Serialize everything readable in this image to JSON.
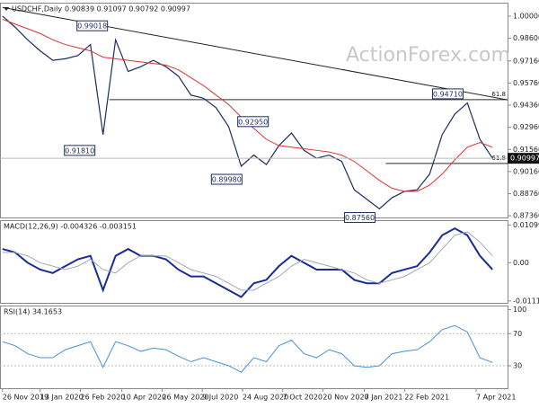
{
  "chart_data": {
    "type": "line",
    "title": "USDCHF,Daily",
    "ohlc_text": "0.90839 0.91097 0.90792 0.90997",
    "watermark": "ActionForex.com",
    "xlim": [
      -0.2,
      40.2
    ],
    "xticks": [
      {
        "value": 0.0,
        "label": "26 Nov 2019"
      },
      {
        "value": 3.0,
        "label": "13 Jan 2020"
      },
      {
        "value": 6.2,
        "label": "26 Feb 2020"
      },
      {
        "value": 9.5,
        "label": "10 Apr 2020"
      },
      {
        "value": 12.7,
        "label": "26 May 2020"
      },
      {
        "value": 15.9,
        "label": "9 Jul 2020"
      },
      {
        "value": 19.1,
        "label": "24 Aug 2020"
      },
      {
        "value": 22.3,
        "label": "7 Oct 2020"
      },
      {
        "value": 25.5,
        "label": "20 Nov 2020"
      },
      {
        "value": 28.8,
        "label": "7 Jan 2021"
      },
      {
        "value": 32.0,
        "label": "22 Feb 2021"
      },
      {
        "value": 37.7,
        "label": "7 Apr 2021"
      }
    ],
    "price": {
      "ylim": [
        0.8725,
        1.0085
      ],
      "yticks": [
        {
          "value": 1.0,
          "label": "1.00000"
        },
        {
          "value": 0.986,
          "label": "0.98600"
        },
        {
          "value": 0.9716,
          "label": "0.97160"
        },
        {
          "value": 0.9576,
          "label": "0.95760"
        },
        {
          "value": 0.9436,
          "label": "0.94360"
        },
        {
          "value": 0.9296,
          "label": "0.92960"
        },
        {
          "value": 0.9156,
          "label": "0.91560"
        },
        {
          "value": 0.9016,
          "label": "0.90160"
        },
        {
          "value": 0.8876,
          "label": "0.88760"
        },
        {
          "value": 0.8736,
          "label": "0.87360"
        }
      ],
      "series": [
        {
          "name": "USDCHF",
          "color": "#1c2d5e",
          "values": [
            1.0,
            0.993,
            0.985,
            0.978,
            0.972,
            0.973,
            0.975,
            0.982,
            0.925,
            0.985,
            0.965,
            0.968,
            0.972,
            0.968,
            0.962,
            0.95,
            0.948,
            0.942,
            0.93,
            0.905,
            0.912,
            0.906,
            0.918,
            0.926,
            0.915,
            0.91,
            0.912,
            0.908,
            0.89,
            0.884,
            0.878,
            0.885,
            0.889,
            0.89,
            0.9,
            0.925,
            0.938,
            0.945,
            0.922,
            0.91
          ]
        },
        {
          "name": "MA",
          "color": "#e03030",
          "values": [
            0.998,
            0.995,
            0.992,
            0.989,
            0.985,
            0.982,
            0.98,
            0.978,
            0.974,
            0.973,
            0.972,
            0.971,
            0.97,
            0.969,
            0.966,
            0.961,
            0.956,
            0.95,
            0.944,
            0.936,
            0.929,
            0.922,
            0.918,
            0.917,
            0.916,
            0.915,
            0.914,
            0.912,
            0.908,
            0.902,
            0.896,
            0.891,
            0.889,
            0.889,
            0.893,
            0.9,
            0.909,
            0.917,
            0.92,
            0.917
          ]
        }
      ],
      "annotations": [
        {
          "label": "0.99018",
          "value": 0.99018,
          "x": 8.5,
          "side": "above"
        },
        {
          "label": "0.91810",
          "value": 0.9181,
          "x": 7.5,
          "side": "below"
        },
        {
          "label": "0.89980",
          "value": 0.8998,
          "x": 19.2,
          "side": "below"
        },
        {
          "label": "0.92950",
          "value": 0.9295,
          "x": 21.3,
          "side": "above"
        },
        {
          "label": "0.87560",
          "value": 0.8756,
          "x": 29.8,
          "side": "below"
        },
        {
          "label": "0.94710",
          "value": 0.9471,
          "x": 36.8,
          "side": "above"
        }
      ],
      "last_price": {
        "label": "0.90997",
        "value": 0.90997
      },
      "levels": [
        {
          "label": "61.8",
          "value": 0.9471,
          "from": 8.5
        },
        {
          "label": "61.8",
          "value": 0.9067,
          "from": 30.5
        }
      ],
      "trendline": {
        "x": [
          0.0,
          40.2
        ],
        "y": [
          1.0055,
          0.947
        ]
      }
    },
    "macd": {
      "title": "MACD(12,26,9) -0.004326 -0.003151",
      "ylim": [
        -0.0117,
        0.0124
      ],
      "yticks": [
        0.010997,
        {
          "value": 0,
          "label": "0.00"
        },
        -0.011127
      ],
      "series": [
        {
          "name": "MACD",
          "color": "#1a2a9a",
          "values": [
            0.004,
            0.003,
            0.0,
            -0.002,
            -0.003,
            -0.001,
            0.001,
            0.002,
            -0.008,
            0.002,
            0.004,
            0.002,
            0.002,
            0.001,
            -0.002,
            -0.004,
            -0.004,
            -0.006,
            -0.008,
            -0.01,
            -0.006,
            -0.005,
            -0.001,
            0.002,
            0.0,
            -0.002,
            -0.002,
            -0.002,
            -0.005,
            -0.006,
            -0.006,
            -0.003,
            -0.002,
            -0.001,
            0.003,
            0.008,
            0.01,
            0.008,
            0.002,
            -0.002
          ]
        },
        {
          "name": "Signal",
          "color": "#a0a8b8",
          "values": [
            0.003,
            0.003,
            0.002,
            0.0,
            -0.001,
            -0.002,
            -0.001,
            0.001,
            -0.002,
            -0.003,
            0.0,
            0.002,
            0.002,
            0.002,
            0.0,
            -0.002,
            -0.003,
            -0.004,
            -0.006,
            -0.008,
            -0.008,
            -0.006,
            -0.004,
            -0.001,
            0.001,
            0.0,
            -0.001,
            -0.002,
            -0.003,
            -0.005,
            -0.006,
            -0.005,
            -0.004,
            -0.002,
            0.0,
            0.004,
            0.008,
            0.009,
            0.006,
            0.002
          ]
        }
      ]
    },
    "rsi": {
      "title": "RSI(14) 34.1653",
      "ylim": [
        2,
        105
      ],
      "yticks": [
        100,
        70,
        30
      ],
      "series": [
        {
          "name": "RSI",
          "color": "#4a90d9",
          "values": [
            60,
            55,
            45,
            40,
            40,
            50,
            55,
            60,
            28,
            60,
            55,
            48,
            52,
            50,
            42,
            35,
            40,
            35,
            30,
            22,
            40,
            35,
            55,
            62,
            45,
            40,
            50,
            45,
            30,
            28,
            30,
            45,
            48,
            50,
            60,
            75,
            80,
            72,
            40,
            34
          ]
        }
      ]
    }
  }
}
